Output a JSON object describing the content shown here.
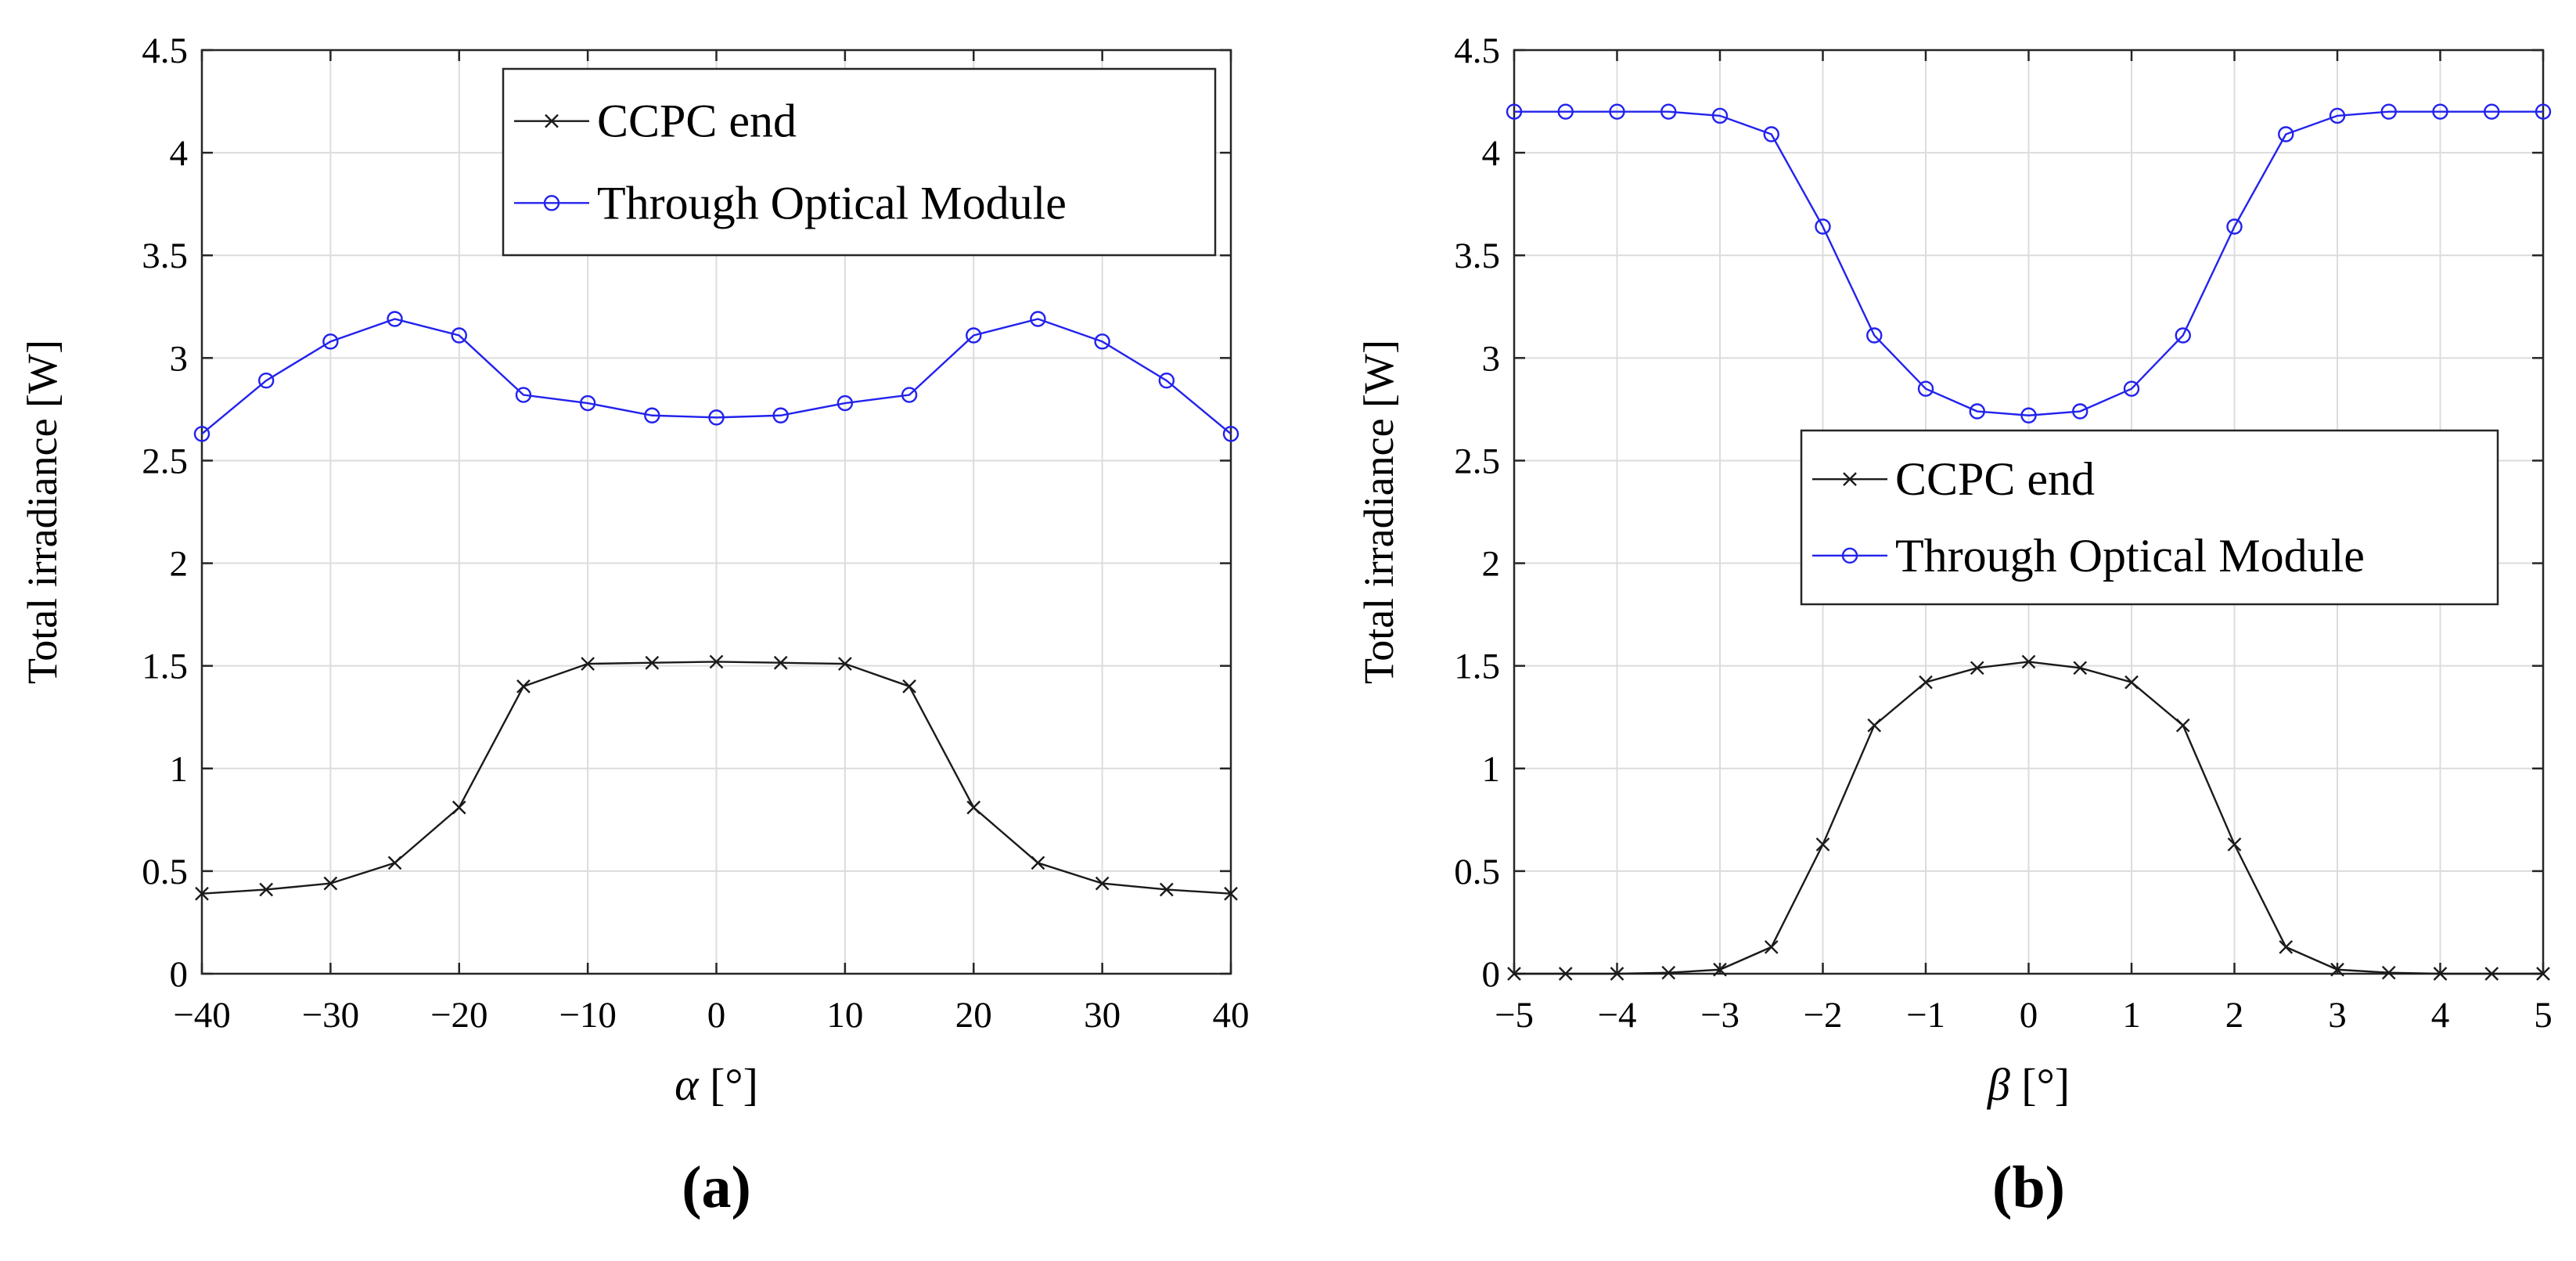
{
  "colors": {
    "ccpc": "#1a1a1a",
    "optical": "#2222ee",
    "grid": "#dcdcdc",
    "axis": "#262626"
  },
  "chart_data": [
    {
      "type": "line",
      "panel_label": "(a)",
      "xlabel_symbol": "α",
      "xlabel_unit": "[°]",
      "ylabel": "Total irradiance [W]",
      "xlim": [
        -40,
        40
      ],
      "ylim": [
        0,
        4.5
      ],
      "xticks": [
        -40,
        -30,
        -20,
        -10,
        0,
        10,
        20,
        30,
        40
      ],
      "xtick_labels": [
        "−40",
        "−30",
        "−20",
        "−10",
        "0",
        "10",
        "20",
        "30",
        "40"
      ],
      "yticks": [
        0,
        0.5,
        1,
        1.5,
        2,
        2.5,
        3,
        3.5,
        4,
        4.5
      ],
      "ytick_labels": [
        "0",
        "0.5",
        "1",
        "1.5",
        "2",
        "2.5",
        "3",
        "3.5",
        "4",
        "4.5"
      ],
      "grid": true,
      "legend_position": "top-right",
      "x": [
        -40,
        -35,
        -30,
        -25,
        -20,
        -15,
        -10,
        -5,
        0,
        5,
        10,
        15,
        20,
        25,
        30,
        35,
        40
      ],
      "series": [
        {
          "name": "CCPC end",
          "marker": "x",
          "color_key": "ccpc",
          "values": [
            0.39,
            0.41,
            0.44,
            0.54,
            0.81,
            1.4,
            1.51,
            1.515,
            1.52,
            1.515,
            1.51,
            1.4,
            0.81,
            0.54,
            0.44,
            0.41,
            0.39
          ]
        },
        {
          "name": "Through Optical Module",
          "marker": "o",
          "color_key": "optical",
          "values": [
            2.63,
            2.89,
            3.08,
            3.19,
            3.11,
            2.82,
            2.78,
            2.72,
            2.71,
            2.72,
            2.78,
            2.82,
            3.11,
            3.19,
            3.08,
            2.89,
            2.63
          ]
        }
      ]
    },
    {
      "type": "line",
      "panel_label": "(b)",
      "xlabel_symbol": "β",
      "xlabel_unit": "[°]",
      "ylabel": "Total irradiance [W]",
      "xlim": [
        -5,
        5
      ],
      "ylim": [
        0,
        4.5
      ],
      "xticks": [
        -5,
        -4,
        -3,
        -2,
        -1,
        0,
        1,
        2,
        3,
        4,
        5
      ],
      "xtick_labels": [
        "−5",
        "−4",
        "−3",
        "−2",
        "−1",
        "0",
        "1",
        "2",
        "3",
        "4",
        "5"
      ],
      "yticks": [
        0,
        0.5,
        1,
        1.5,
        2,
        2.5,
        3,
        3.5,
        4,
        4.5
      ],
      "ytick_labels": [
        "0",
        "0.5",
        "1",
        "1.5",
        "2",
        "2.5",
        "3",
        "3.5",
        "4",
        "4.5"
      ],
      "grid": true,
      "legend_position": "center-right",
      "x": [
        -5,
        -4.5,
        -4,
        -3.5,
        -3,
        -2.5,
        -2,
        -1.5,
        -1,
        -0.5,
        0,
        0.5,
        1,
        1.5,
        2,
        2.5,
        3,
        3.5,
        4,
        4.5,
        5
      ],
      "series": [
        {
          "name": "CCPC end",
          "marker": "x",
          "color_key": "ccpc",
          "values": [
            0.0,
            0.0,
            0.0,
            0.005,
            0.02,
            0.13,
            0.63,
            1.21,
            1.42,
            1.49,
            1.52,
            1.49,
            1.42,
            1.21,
            0.63,
            0.13,
            0.02,
            0.005,
            0.0,
            0.0,
            0.0
          ]
        },
        {
          "name": "Through Optical Module",
          "marker": "o",
          "color_key": "optical",
          "values": [
            4.2,
            4.2,
            4.2,
            4.2,
            4.18,
            4.09,
            3.64,
            3.11,
            2.85,
            2.74,
            2.72,
            2.74,
            2.85,
            3.11,
            3.64,
            4.09,
            4.18,
            4.2,
            4.2,
            4.2,
            4.2
          ]
        }
      ]
    }
  ]
}
